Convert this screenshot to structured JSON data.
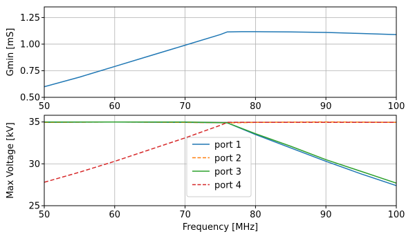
{
  "chart_data": [
    {
      "type": "line",
      "title": "",
      "xlabel": "",
      "ylabel": "Gmin [mS]",
      "xlim": [
        50,
        100
      ],
      "ylim": [
        0.5,
        1.35
      ],
      "xticks": [
        "50",
        "60",
        "70",
        "80",
        "90",
        "100"
      ],
      "yticks": [
        "0.50",
        "0.75",
        "1.00",
        "1.25"
      ],
      "grid": true,
      "series": [
        {
          "color": "#1f77b4",
          "dash": "solid",
          "x": [
            50,
            55,
            60,
            65,
            70,
            75,
            76,
            78,
            80,
            85,
            90,
            95,
            100
          ],
          "y": [
            0.6,
            0.69,
            0.79,
            0.89,
            0.99,
            1.09,
            1.115,
            1.117,
            1.117,
            1.115,
            1.11,
            1.1,
            1.09
          ]
        }
      ]
    },
    {
      "type": "line",
      "title": "",
      "xlabel": "Frequency [MHz]",
      "ylabel": "Max Voltage [kV]",
      "xlim": [
        50,
        100
      ],
      "ylim": [
        25,
        35.8
      ],
      "xticks": [
        "50",
        "60",
        "70",
        "80",
        "90",
        "100"
      ],
      "yticks": [
        "25",
        "30",
        "35"
      ],
      "grid": true,
      "legend": "center",
      "series": [
        {
          "name": "port 1",
          "color": "#1f77b4",
          "dash": "solid",
          "x": [
            50,
            60,
            70,
            76,
            80,
            85,
            90,
            95,
            100
          ],
          "y": [
            34.95,
            35.0,
            34.95,
            34.9,
            33.5,
            31.9,
            30.3,
            28.8,
            27.4
          ]
        },
        {
          "name": "port 2",
          "color": "#ff7f0e",
          "dash": "dashed",
          "x": [
            50,
            60,
            70,
            76,
            80,
            90,
            100
          ],
          "y": [
            34.95,
            35.0,
            34.95,
            34.9,
            34.95,
            35.0,
            34.95
          ]
        },
        {
          "name": "port 3",
          "color": "#2ca02c",
          "dash": "solid",
          "x": [
            50,
            60,
            70,
            76,
            80,
            85,
            90,
            95,
            100
          ],
          "y": [
            35.0,
            35.0,
            35.0,
            34.9,
            33.6,
            32.1,
            30.5,
            29.1,
            27.7
          ]
        },
        {
          "name": "port 4",
          "color": "#d62728",
          "dash": "dashed",
          "x": [
            50,
            55,
            60,
            65,
            70,
            75,
            76,
            80,
            90,
            100
          ],
          "y": [
            27.8,
            29.0,
            30.3,
            31.7,
            33.1,
            34.6,
            34.95,
            34.95,
            34.95,
            34.95
          ]
        }
      ]
    }
  ]
}
